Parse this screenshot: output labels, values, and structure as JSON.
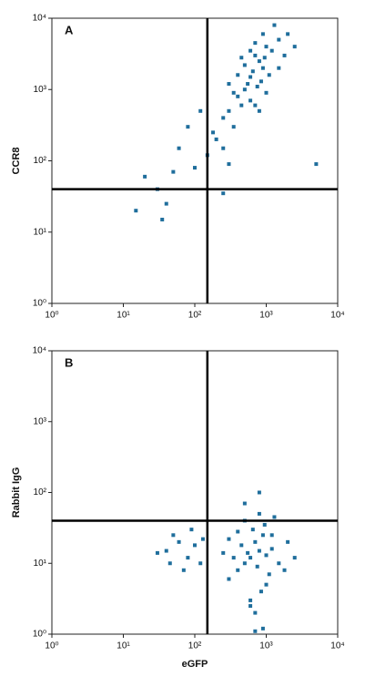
{
  "chart_data": [
    {
      "type": "scatter",
      "title": "A",
      "y_label": "CCR8",
      "xscale": "log",
      "yscale": "log",
      "color": "#1f6e9c",
      "xlim": [
        1,
        10000
      ],
      "ylim": [
        1,
        10000
      ],
      "xticks": [
        {
          "value": 1,
          "label": "10⁰"
        },
        {
          "value": 10,
          "label": "10¹"
        },
        {
          "value": 100,
          "label": "10²"
        },
        {
          "value": 1000,
          "label": "10³"
        },
        {
          "value": 10000,
          "label": "10⁴"
        }
      ],
      "yticks": [
        {
          "value": 1,
          "label": "10⁰"
        },
        {
          "value": 10,
          "label": "10¹"
        },
        {
          "value": 100,
          "label": "10²"
        },
        {
          "value": 1000,
          "label": "10³"
        },
        {
          "value": 10000,
          "label": "10⁴"
        }
      ],
      "quadrant_x": 150,
      "quadrant_y": 40,
      "x": [
        600,
        800,
        500,
        700,
        400,
        900,
        1000,
        550,
        650,
        750,
        450,
        350,
        300,
        1200,
        1500,
        850,
        950,
        1100,
        600,
        500,
        400,
        700,
        2000,
        1800,
        1300,
        250,
        300,
        800,
        1000,
        600,
        700,
        900,
        350,
        1500,
        450,
        2500,
        200,
        150,
        100,
        60,
        30,
        20,
        40,
        15,
        80,
        120,
        180,
        250,
        5000,
        300,
        50,
        35,
        250
      ],
      "y": [
        1500,
        2500,
        1000,
        3000,
        800,
        2000,
        4000,
        1200,
        1800,
        1100,
        600,
        900,
        500,
        3500,
        5000,
        1300,
        2800,
        1600,
        700,
        2200,
        1600,
        600,
        6000,
        3000,
        8000,
        400,
        1200,
        500,
        900,
        3500,
        4500,
        6000,
        300,
        2000,
        2800,
        4000,
        200,
        120,
        80,
        150,
        40,
        60,
        25,
        20,
        300,
        500,
        250,
        150,
        90,
        90,
        70,
        15,
        35
      ]
    },
    {
      "type": "scatter",
      "title": "B",
      "x_label": "eGFP",
      "y_label": "Rabbit IgG",
      "xscale": "log",
      "yscale": "log",
      "color": "#1f6e9c",
      "xlim": [
        1,
        10000
      ],
      "ylim": [
        1,
        10000
      ],
      "xticks": [
        {
          "value": 1,
          "label": "10⁰"
        },
        {
          "value": 10,
          "label": "10¹"
        },
        {
          "value": 100,
          "label": "10²"
        },
        {
          "value": 1000,
          "label": "10³"
        },
        {
          "value": 10000,
          "label": "10⁴"
        }
      ],
      "yticks": [
        {
          "value": 1,
          "label": "10⁰"
        },
        {
          "value": 10,
          "label": "10¹"
        },
        {
          "value": 100,
          "label": "10²"
        },
        {
          "value": 1000,
          "label": "10³"
        },
        {
          "value": 10000,
          "label": "10⁴"
        }
      ],
      "quadrant_x": 150,
      "quadrant_y": 40,
      "x": [
        600,
        800,
        500,
        700,
        400,
        900,
        1000,
        550,
        650,
        750,
        450,
        350,
        300,
        1200,
        1500,
        850,
        950,
        1100,
        600,
        500,
        400,
        700,
        2000,
        1800,
        1300,
        250,
        300,
        800,
        1000,
        600,
        700,
        900,
        1200,
        2500,
        40,
        60,
        80,
        100,
        50,
        120,
        30,
        70,
        90,
        130,
        45,
        800,
        500
      ],
      "y": [
        12,
        15,
        10,
        20,
        8,
        25,
        5,
        14,
        30,
        9,
        18,
        12,
        22,
        16,
        10,
        4,
        35,
        7,
        3,
        40,
        28,
        2,
        20,
        8,
        45,
        14,
        6,
        50,
        13,
        2.5,
        1.1,
        1.2,
        25,
        12,
        15,
        20,
        12,
        18,
        25,
        10,
        14,
        8,
        30,
        22,
        10,
        100,
        70
      ]
    }
  ]
}
